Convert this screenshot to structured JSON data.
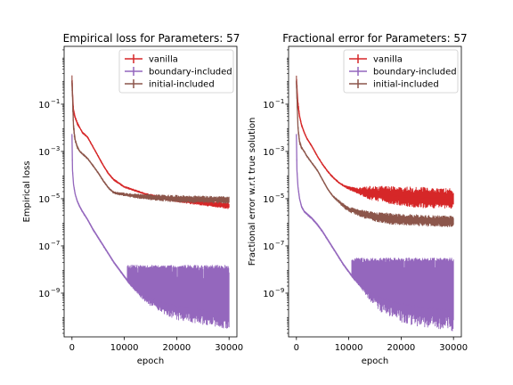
{
  "chart_data": [
    {
      "type": "line",
      "title": "Empirical loss for Parameters: 57",
      "xlabel": "epoch",
      "ylabel": "Empirical loss",
      "xlim": [
        -1500,
        31500
      ],
      "ylim_log10": [
        -10.85,
        1.45
      ],
      "yscale": "log",
      "xticks": [
        0,
        10000,
        20000,
        30000
      ],
      "xtick_labels": [
        "0",
        "10000",
        "20000",
        "30000"
      ],
      "yticks_exp": [
        -9,
        -7,
        -5,
        -3,
        -1
      ],
      "ytick_labels": [
        "10",
        "10",
        "10",
        "10",
        "10"
      ],
      "ytick_exponents": [
        "−9",
        "−7",
        "−5",
        "−3",
        "−1"
      ],
      "legend": {
        "position": "upper right",
        "entries": [
          "vanilla",
          "boundary-included",
          "initial-included"
        ]
      },
      "series": [
        {
          "name": "vanilla",
          "color": "#d62728",
          "x": [
            0,
            150,
            300,
            600,
            1000,
            1500,
            2000,
            3000,
            4000,
            5000,
            6000,
            7000,
            8000,
            9000,
            10000,
            12000,
            14000,
            16000,
            18000,
            20000,
            22000,
            24000,
            26000,
            28000,
            30000
          ],
          "log10_y": [
            0.0,
            -0.8,
            -1.3,
            -1.55,
            -1.8,
            -2.0,
            -2.2,
            -2.4,
            -2.8,
            -3.2,
            -3.6,
            -3.95,
            -4.2,
            -4.35,
            -4.5,
            -4.65,
            -4.8,
            -4.9,
            -5.0,
            -5.05,
            -5.1,
            -5.15,
            -5.2,
            -5.25,
            -5.3
          ],
          "spread": [
            0.5,
            0.3,
            0.2,
            0.1,
            0.08,
            0.05,
            0.05,
            0.05,
            0.05,
            0.05,
            0.05,
            0.05,
            0.05,
            0.05,
            0.05,
            0.05,
            0.05,
            0.06,
            0.08,
            0.1,
            0.12,
            0.12,
            0.14,
            0.14,
            0.15
          ]
        },
        {
          "name": "boundary-included",
          "color": "#9467bd",
          "x": [
            0,
            100,
            300,
            600,
            1000,
            1500,
            2000,
            3000,
            4000,
            5000,
            6000,
            7000,
            8000,
            9000,
            10000,
            11000,
            12000,
            13000,
            14000,
            16000,
            18000,
            20000,
            24000,
            28000,
            30000
          ],
          "log10_y": [
            -2.3,
            -3.8,
            -4.4,
            -4.8,
            -5.1,
            -5.35,
            -5.55,
            -5.9,
            -6.3,
            -6.65,
            -7.0,
            -7.35,
            -7.7,
            -8.0,
            -8.3,
            -8.6,
            -8.8,
            -8.95,
            -9.1,
            -9.3,
            -9.45,
            -9.55,
            -9.7,
            -9.8,
            -9.85
          ],
          "spread_low": [
            0.05,
            0.05,
            0.05,
            0.05,
            0.05,
            0.05,
            0.05,
            0.05,
            0.05,
            0.05,
            0.05,
            0.05,
            0.05,
            0.05,
            0.05,
            0.05,
            0.1,
            0.2,
            0.3,
            0.4,
            0.5,
            0.6,
            0.6,
            0.65,
            0.7
          ],
          "noise_top_log10": [
            -7.8,
            -7.8
          ]
        },
        {
          "name": "initial-included",
          "color": "#8c564b",
          "x": [
            0,
            150,
            300,
            600,
            1000,
            1500,
            2000,
            3000,
            4000,
            5000,
            6000,
            7000,
            7500,
            8000,
            10000,
            12000,
            14000,
            16000,
            18000,
            20000,
            22000,
            24000,
            26000,
            28000,
            30000
          ],
          "log10_y": [
            0.0,
            -1.0,
            -2.0,
            -2.5,
            -2.8,
            -3.0,
            -3.1,
            -3.3,
            -3.6,
            -3.9,
            -4.25,
            -4.55,
            -4.65,
            -4.75,
            -4.82,
            -4.88,
            -4.92,
            -4.95,
            -4.98,
            -5.0,
            -5.02,
            -5.03,
            -5.04,
            -5.05,
            -5.05
          ],
          "spread": [
            0.5,
            0.4,
            0.3,
            0.1,
            0.08,
            0.05,
            0.05,
            0.05,
            0.05,
            0.05,
            0.05,
            0.05,
            0.05,
            0.06,
            0.08,
            0.1,
            0.12,
            0.14,
            0.15,
            0.16,
            0.16,
            0.16,
            0.16,
            0.16,
            0.16
          ]
        }
      ]
    },
    {
      "type": "line",
      "title": "Fractional error for Parameters: 57",
      "xlabel": "epoch",
      "ylabel": "Fractional error w.r.t true solution",
      "xlim": [
        -1500,
        31500
      ],
      "ylim_log10": [
        -10.85,
        1.45
      ],
      "yscale": "log",
      "xticks": [
        0,
        10000,
        20000,
        30000
      ],
      "xtick_labels": [
        "0",
        "10000",
        "20000",
        "30000"
      ],
      "yticks_exp": [
        -9,
        -7,
        -5,
        -3,
        -1
      ],
      "ytick_labels": [
        "10",
        "10",
        "10",
        "10",
        "10"
      ],
      "ytick_exponents": [
        "−9",
        "−7",
        "−5",
        "−3",
        "−1"
      ],
      "legend": {
        "position": "upper right",
        "entries": [
          "vanilla",
          "boundary-included",
          "initial-included"
        ]
      },
      "series": [
        {
          "name": "vanilla",
          "color": "#d62728",
          "x": [
            0,
            150,
            300,
            600,
            1000,
            1500,
            2000,
            3000,
            4000,
            5000,
            6000,
            7000,
            8000,
            9000,
            10000,
            12000,
            14000,
            16000,
            18000,
            20000,
            22000,
            24000,
            26000,
            28000,
            30000
          ],
          "log10_y": [
            0.0,
            -0.5,
            -1.0,
            -1.5,
            -1.9,
            -2.2,
            -2.45,
            -2.8,
            -3.2,
            -3.55,
            -3.85,
            -4.1,
            -4.3,
            -4.45,
            -4.55,
            -4.68,
            -4.75,
            -4.8,
            -4.85,
            -4.9,
            -4.92,
            -4.95,
            -4.97,
            -4.98,
            -5.0
          ],
          "spread": [
            0.4,
            0.3,
            0.2,
            0.1,
            0.08,
            0.06,
            0.05,
            0.05,
            0.05,
            0.05,
            0.05,
            0.05,
            0.05,
            0.05,
            0.08,
            0.15,
            0.3,
            0.35,
            0.4,
            0.4,
            0.45,
            0.45,
            0.45,
            0.45,
            0.45
          ]
        },
        {
          "name": "boundary-included",
          "color": "#9467bd",
          "x": [
            0,
            100,
            300,
            600,
            1000,
            1500,
            2000,
            3000,
            4000,
            5000,
            6000,
            7000,
            8000,
            9000,
            10000,
            11000,
            12000,
            13000,
            14000,
            16000,
            18000,
            20000,
            24000,
            28000,
            30000
          ],
          "log10_y": [
            -2.3,
            -3.8,
            -4.5,
            -5.0,
            -5.35,
            -5.55,
            -5.65,
            -5.85,
            -6.1,
            -6.4,
            -6.75,
            -7.1,
            -7.45,
            -7.8,
            -8.1,
            -8.4,
            -8.6,
            -8.8,
            -8.95,
            -9.2,
            -9.35,
            -9.45,
            -9.6,
            -9.7,
            -9.75
          ],
          "spread_low": [
            0.05,
            0.05,
            0.05,
            0.05,
            0.05,
            0.05,
            0.05,
            0.05,
            0.05,
            0.05,
            0.05,
            0.05,
            0.05,
            0.05,
            0.05,
            0.05,
            0.1,
            0.2,
            0.4,
            0.6,
            0.7,
            0.8,
            0.85,
            0.85,
            0.9
          ],
          "noise_top_log10": [
            -7.5,
            -7.5
          ]
        },
        {
          "name": "initial-included",
          "color": "#8c564b",
          "x": [
            0,
            150,
            300,
            600,
            1000,
            1500,
            2000,
            3000,
            4000,
            5000,
            6000,
            7000,
            8000,
            9000,
            10000,
            12000,
            14000,
            16000,
            18000,
            20000,
            22000,
            24000,
            26000,
            28000,
            30000
          ],
          "log10_y": [
            0.0,
            -1.0,
            -2.0,
            -2.6,
            -2.85,
            -3.0,
            -3.2,
            -3.5,
            -3.8,
            -4.2,
            -4.6,
            -4.9,
            -5.1,
            -5.3,
            -5.45,
            -5.6,
            -5.72,
            -5.8,
            -5.85,
            -5.88,
            -5.9,
            -5.92,
            -5.94,
            -5.95,
            -5.96
          ],
          "spread": [
            0.4,
            0.3,
            0.2,
            0.1,
            0.08,
            0.05,
            0.05,
            0.05,
            0.05,
            0.05,
            0.05,
            0.05,
            0.08,
            0.1,
            0.12,
            0.15,
            0.2,
            0.22,
            0.25,
            0.25,
            0.25,
            0.25,
            0.25,
            0.25,
            0.25
          ]
        }
      ]
    }
  ]
}
